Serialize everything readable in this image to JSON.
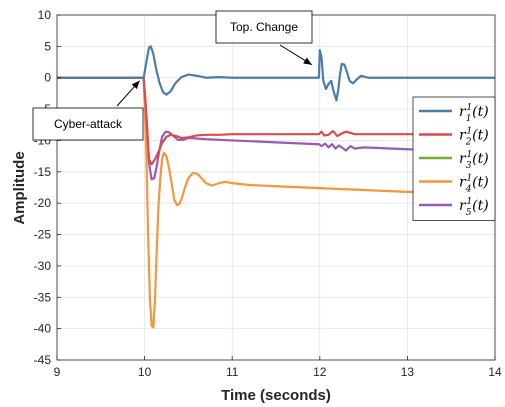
{
  "chart_data": {
    "type": "line",
    "title": "",
    "xlabel": "Time (seconds)",
    "ylabel": "Amplitude",
    "xlim": [
      9,
      14
    ],
    "ylim": [
      -45,
      10
    ],
    "xticks": [
      9,
      10,
      11,
      12,
      13,
      14
    ],
    "yticks": [
      10,
      5,
      0,
      -5,
      -10,
      -15,
      -20,
      -25,
      -30,
      -35,
      -40,
      -45
    ],
    "grid": true,
    "legend_position": "right",
    "annotations": [
      {
        "text": "Top. Change",
        "points_to": [
          12.0,
          0
        ]
      },
      {
        "text": "Cyber-attack",
        "points_to": [
          10.0,
          0
        ]
      }
    ],
    "series": [
      {
        "name": "r_1^1(t)",
        "sym": "r",
        "sub": "1",
        "sup": "1",
        "color": "#4a7eaa",
        "x": [
          9,
          9.99,
          10.02,
          10.05,
          10.07,
          10.1,
          10.13,
          10.17,
          10.21,
          10.25,
          10.3,
          10.35,
          10.42,
          10.5,
          10.6,
          10.7,
          10.85,
          11,
          11.5,
          11.99,
          12.0,
          12.02,
          12.04,
          12.07,
          12.1,
          12.13,
          12.16,
          12.19,
          12.21,
          12.23,
          12.25,
          12.28,
          12.31,
          12.34,
          12.38,
          12.42,
          12.47,
          12.55,
          12.7,
          13,
          13.5,
          14
        ],
        "y": [
          0,
          0,
          2.5,
          4.8,
          5.0,
          3.8,
          1.5,
          -0.8,
          -2.3,
          -2.7,
          -2.1,
          -0.9,
          0.1,
          0.5,
          0.3,
          0,
          0.1,
          0,
          0,
          0,
          4.4,
          3.2,
          -0.5,
          -1.8,
          -1.0,
          -0.5,
          -2.3,
          -3.6,
          -2.0,
          0.5,
          2.2,
          2.1,
          0.9,
          -0.5,
          -0.9,
          -0.3,
          0.3,
          0,
          0,
          0,
          0,
          0
        ]
      },
      {
        "name": "r_2^1(t)",
        "sym": "r",
        "sub": "2",
        "sup": "1",
        "color": "#dc4b4b",
        "x": [
          9,
          9.99,
          10.02,
          10.05,
          10.08,
          10.12,
          10.16,
          10.2,
          10.25,
          10.3,
          10.36,
          10.42,
          10.5,
          10.6,
          10.7,
          10.85,
          11,
          11.5,
          11.99,
          12.02,
          12.05,
          12.1,
          12.15,
          12.2,
          12.25,
          12.3,
          12.4,
          13,
          14
        ],
        "y": [
          0,
          0,
          -6,
          -13.0,
          -13.8,
          -13.0,
          -11.8,
          -10.4,
          -9.4,
          -9.1,
          -9.3,
          -9.6,
          -9.5,
          -9.2,
          -9.1,
          -9.1,
          -9.0,
          -9.0,
          -9.0,
          -8.6,
          -9.2,
          -9.1,
          -8.5,
          -9.3,
          -8.9,
          -8.6,
          -9.0,
          -9.0,
          -9.0
        ]
      },
      {
        "name": "r_3^1(t)",
        "sym": "r",
        "sub": "3",
        "sup": "1",
        "color": "#77ac30",
        "x": [
          9,
          9.99
        ],
        "y": [
          0,
          0
        ]
      },
      {
        "name": "r_4^1(t)",
        "sym": "r",
        "sub": "4",
        "sup": "1",
        "color": "#f5963c",
        "x": [
          9,
          9.99,
          10.02,
          10.04,
          10.06,
          10.08,
          10.1,
          10.12,
          10.14,
          10.16,
          10.18,
          10.2,
          10.22,
          10.25,
          10.28,
          10.31,
          10.34,
          10.37,
          10.4,
          10.43,
          10.46,
          10.5,
          10.55,
          10.6,
          10.65,
          10.7,
          10.77,
          10.85,
          10.92,
          11,
          11.2,
          11.5,
          12,
          12.5,
          13,
          13.5,
          14
        ],
        "y": [
          0,
          0,
          -12,
          -25,
          -35,
          -39.5,
          -39.8,
          -35,
          -27,
          -20,
          -16,
          -13,
          -12,
          -12.5,
          -14.5,
          -17,
          -19.5,
          -20.3,
          -20.1,
          -19,
          -17.5,
          -16,
          -15.2,
          -15.3,
          -16,
          -16.8,
          -17.2,
          -16.8,
          -16.6,
          -16.8,
          -17.1,
          -17.3,
          -17.6,
          -17.9,
          -18.2,
          -18.5,
          -18.8
        ]
      },
      {
        "name": "r_5^1(t)",
        "sym": "r",
        "sub": "5",
        "sup": "1",
        "color": "#9b59b6",
        "x": [
          9,
          9.99,
          10.02,
          10.05,
          10.08,
          10.11,
          10.14,
          10.17,
          10.2,
          10.24,
          10.28,
          10.33,
          10.38,
          10.44,
          10.5,
          10.6,
          10.7,
          10.85,
          11,
          11.5,
          11.99,
          12.02,
          12.06,
          12.1,
          12.14,
          12.18,
          12.22,
          12.26,
          12.3,
          12.35,
          12.4,
          12.5,
          13,
          14
        ],
        "y": [
          0,
          0,
          -6,
          -13.5,
          -16.2,
          -16.0,
          -14.0,
          -11.5,
          -9.4,
          -8.6,
          -8.7,
          -9.3,
          -9.9,
          -9.9,
          -9.6,
          -9.7,
          -9.8,
          -9.9,
          -10.0,
          -10.3,
          -10.6,
          -10.9,
          -10.5,
          -11.1,
          -10.6,
          -11.3,
          -10.8,
          -11.2,
          -11.6,
          -10.9,
          -11.3,
          -11.1,
          -11.4,
          -11.9
        ]
      }
    ]
  }
}
